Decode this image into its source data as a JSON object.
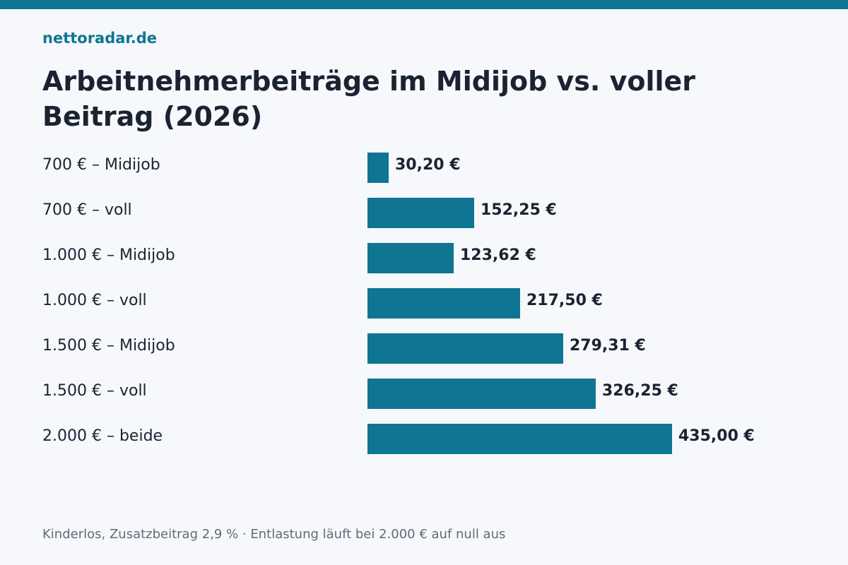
{
  "header": {
    "brand": "nettoradar.de"
  },
  "chart_data": {
    "type": "bar",
    "orientation": "horizontal",
    "title": "Arbeitnehmerbeiträge im Midijob vs. voller Beitrag (2026)",
    "categories": [
      "700 € – Midijob",
      "700 € – voll",
      "1.000 € – Midijob",
      "1.000 € – voll",
      "1.500 € – Midijob",
      "1.500 € – voll",
      "2.000 € – beide"
    ],
    "values": [
      30.2,
      152.25,
      123.62,
      217.5,
      279.31,
      326.25,
      435.0
    ],
    "value_labels": [
      "30,20 €",
      "152,25 €",
      "123,62 €",
      "217,50 €",
      "279,31 €",
      "326,25 €",
      "435,00 €"
    ],
    "xlim": [
      0,
      435
    ],
    "bar_color": "#0f7592",
    "grid": false
  },
  "footnote": "Kinderlos, Zusatzbeitrag 2,9 % · Entlastung läuft bei 2.000 € auf null aus",
  "colors": {
    "accent": "#0f7592",
    "background": "#f6f8fb",
    "text": "#1b2333",
    "muted": "#5f6b7a"
  }
}
